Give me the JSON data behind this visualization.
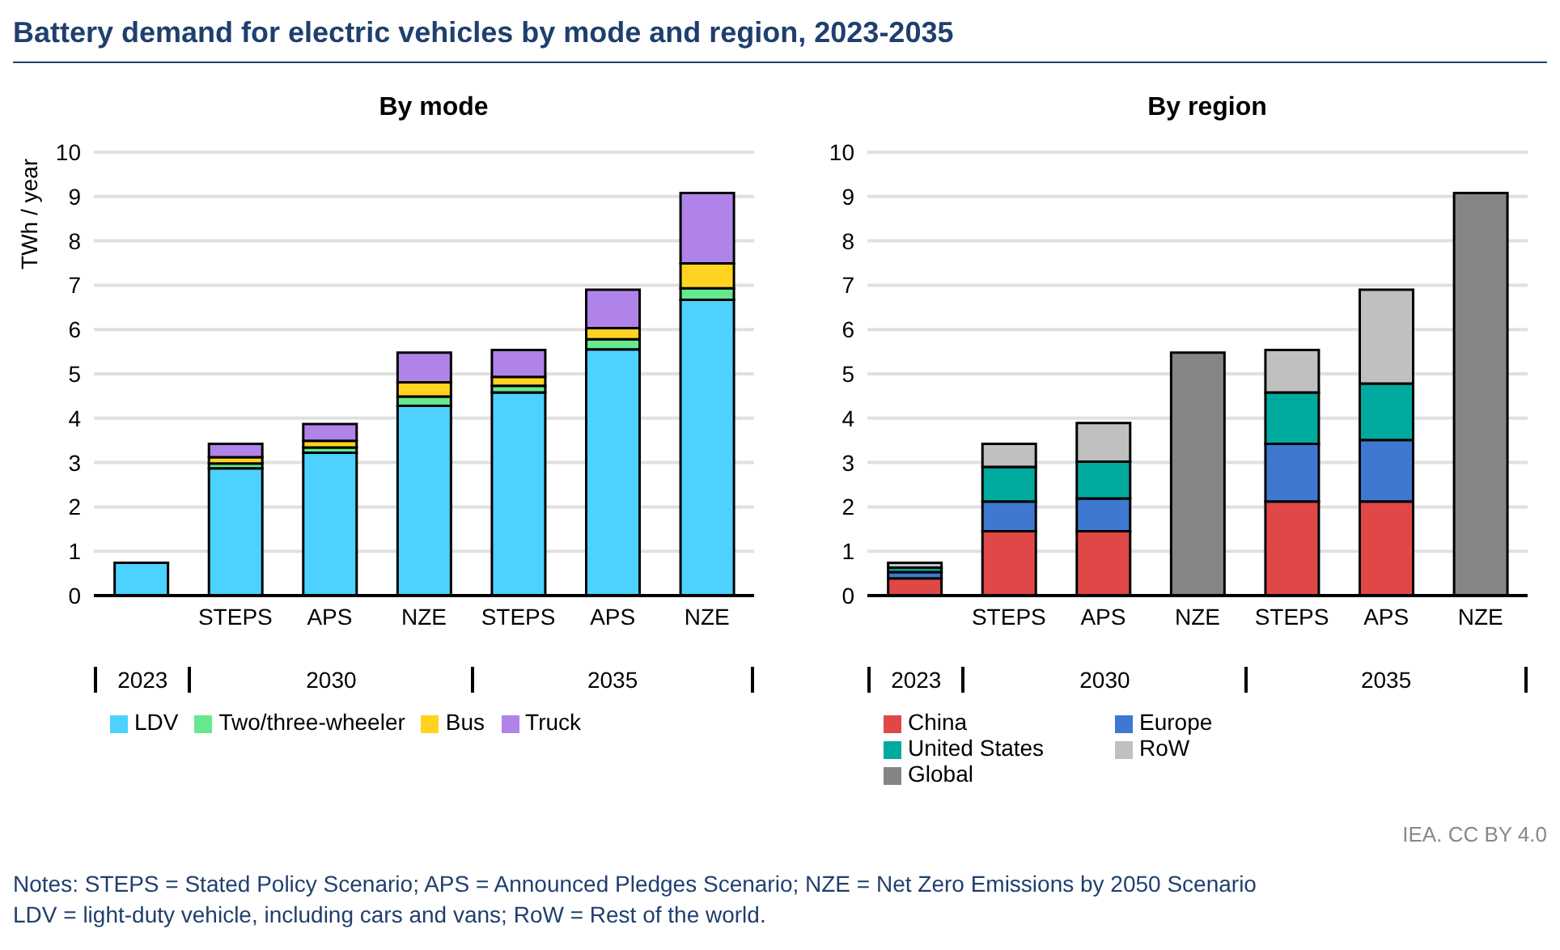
{
  "chart_data": [
    {
      "type": "bar",
      "title": "Battery demand for electric vehicles by mode and region, 2023-2035",
      "subtitle": "By mode",
      "ylabel": "TWh / year",
      "categories": [
        null,
        "STEPS",
        "APS",
        "NZE",
        "STEPS",
        "APS",
        "NZE"
      ],
      "stacked": true,
      "ylim": [
        0,
        10
      ],
      "yticks": [
        0,
        1,
        2,
        3,
        4,
        5,
        6,
        7,
        8,
        9,
        10
      ],
      "grid": "y",
      "legend": "bottom",
      "annotations": [
        "2023",
        "2030",
        "2035"
      ],
      "series": [
        {
          "name": "LDV",
          "color": "#4dd2ff",
          "values": [
            0.74,
            2.87,
            3.22,
            4.28,
            4.58,
            5.55,
            6.67
          ]
        },
        {
          "name": "Two/three-wheeler",
          "color": "#66e88f",
          "values": [
            null,
            0.11,
            0.12,
            0.21,
            0.15,
            0.23,
            0.26
          ]
        },
        {
          "name": "Bus",
          "color": "#ffd320",
          "values": [
            null,
            0.14,
            0.15,
            0.32,
            0.2,
            0.25,
            0.56
          ]
        },
        {
          "name": "Truck",
          "color": "#b083e8",
          "values": [
            null,
            0.3,
            0.38,
            0.67,
            0.61,
            0.87,
            1.59
          ]
        }
      ]
    },
    {
      "type": "bar",
      "subtitle": "By region",
      "categories": [
        null,
        "STEPS",
        "APS",
        "NZE",
        "STEPS",
        "APS",
        "NZE"
      ],
      "stacked": true,
      "ylim": [
        0,
        10
      ],
      "yticks": [
        0,
        1,
        2,
        3,
        4,
        5,
        6,
        7,
        8,
        9,
        10
      ],
      "grid": "y",
      "legend": "bottom",
      "annotations": [
        "2023",
        "2030",
        "2035",
        "IEA. CC BY 4.0",
        "Notes: STEPS = Stated Policy Scenario; APS = Announced Pledges Scenario; NZE = Net Zero Emissions by 2050 Scenario",
        "LDV = light-duty vehicle, including cars and vans; RoW = Rest of the world."
      ],
      "series": [
        {
          "name": "China",
          "color": "#e04848",
          "values": [
            0.39,
            1.45,
            1.45,
            null,
            2.12,
            2.12,
            null
          ]
        },
        {
          "name": "Europe",
          "color": "#3e78d0",
          "values": [
            0.14,
            0.67,
            0.74,
            null,
            1.3,
            1.39,
            null
          ]
        },
        {
          "name": "United States",
          "color": "#00aa9e",
          "values": [
            0.1,
            0.78,
            0.83,
            null,
            1.16,
            1.27,
            null
          ]
        },
        {
          "name": "RoW",
          "color": "#c0c0c0",
          "values": [
            0.11,
            0.52,
            0.87,
            null,
            0.96,
            2.12,
            null
          ]
        },
        {
          "name": "Global",
          "color": "#858585",
          "values": [
            null,
            null,
            null,
            5.48,
            null,
            null,
            9.08
          ]
        }
      ]
    }
  ]
}
